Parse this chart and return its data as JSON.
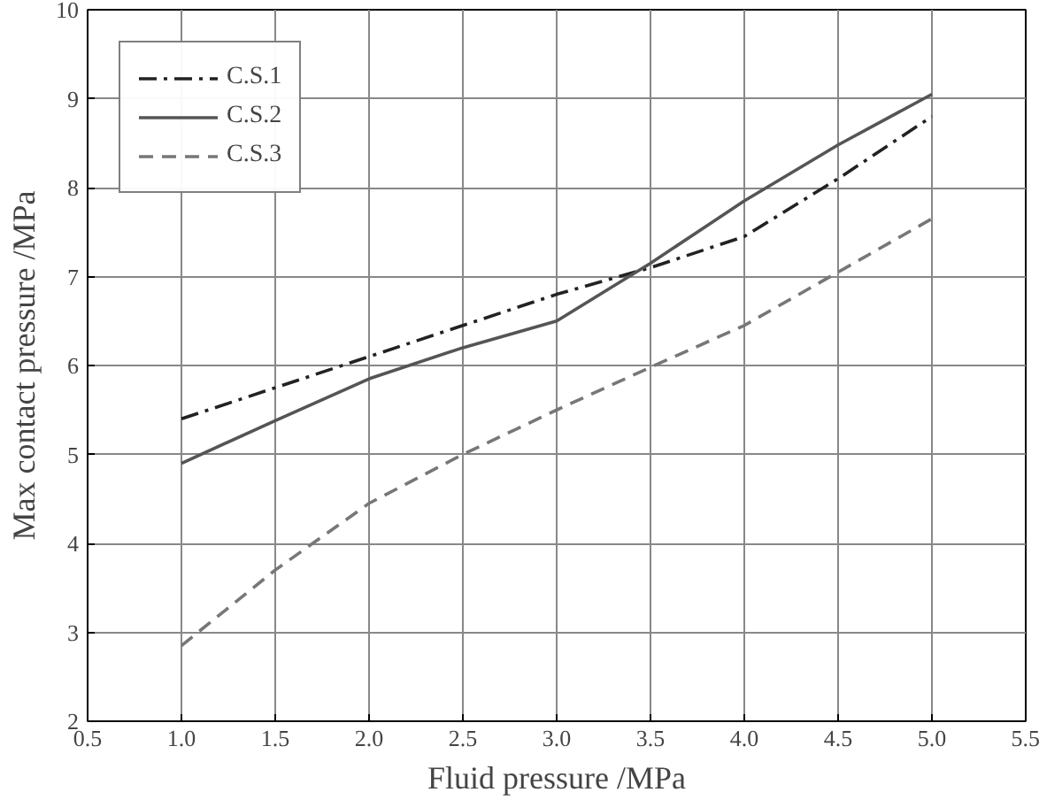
{
  "chart_data": {
    "type": "line",
    "xlabel": "Fluid pressure /MPa",
    "ylabel": "Max contact pressure /MPa",
    "x": [
      1.0,
      1.5,
      2.0,
      2.5,
      3.0,
      3.5,
      4.0,
      4.5,
      5.0
    ],
    "series": [
      {
        "name": "C.S.1",
        "color": "#222222",
        "line_style": "dashdot",
        "values": [
          5.4,
          5.75,
          6.1,
          6.45,
          6.8,
          7.1,
          7.45,
          8.1,
          8.8
        ]
      },
      {
        "name": "C.S.2",
        "color": "#555555",
        "line_style": "solid",
        "values": [
          4.9,
          5.38,
          5.85,
          6.2,
          6.5,
          7.15,
          7.85,
          8.48,
          9.05
        ]
      },
      {
        "name": "C.S.3",
        "color": "#777777",
        "line_style": "dashed",
        "values": [
          2.85,
          3.7,
          4.45,
          5.0,
          5.5,
          5.98,
          6.45,
          7.05,
          7.65
        ]
      }
    ],
    "xlim": [
      0.5,
      5.5
    ],
    "xticks": [
      0.5,
      {
        "value": 1.0,
        "label": "1.0"
      },
      1.5,
      {
        "value": 2.0,
        "label": "2.0"
      },
      2.5,
      {
        "value": 3.0,
        "label": "3.0"
      },
      3.5,
      {
        "value": 4.0,
        "label": "4.0"
      },
      4.5,
      {
        "value": 5.0,
        "label": "5.0"
      },
      5.5
    ],
    "ylim": [
      2,
      10
    ],
    "yticks": [
      2,
      3,
      4,
      5,
      6,
      7,
      8,
      9,
      10
    ],
    "grid": true,
    "legend": "top left",
    "marker": "none"
  }
}
